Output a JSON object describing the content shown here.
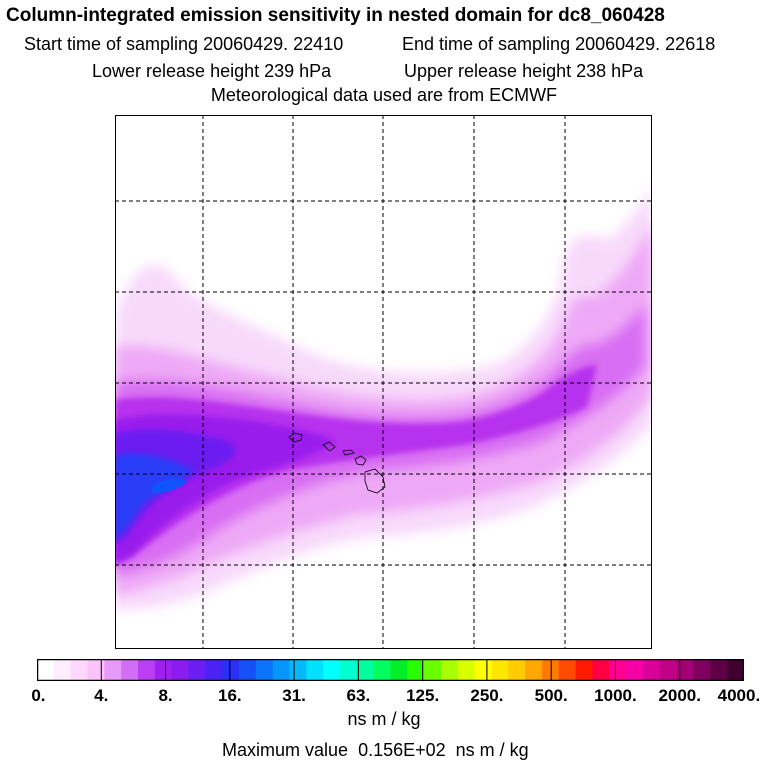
{
  "header": {
    "title": "Column-integrated emission sensitivity in nested domain for dc8_060428",
    "start_time": "Start time of sampling 20060429. 22410",
    "end_time": "End time of sampling 20060429. 22618",
    "lower_release": "Lower release height  239 hPa",
    "upper_release": "Upper release height  238 hPa",
    "met_data": "Meteorological data used are from ECMWF"
  },
  "colorbar": {
    "ticks": [
      "0.",
      "4.",
      "8.",
      "16.",
      "31.",
      "63.",
      "125.",
      "250.",
      "500.",
      "1000.",
      "2000.",
      "4000."
    ],
    "unit": "ns m / kg",
    "colors": [
      "#ffffff",
      "#ffeefe",
      "#ffd9fd",
      "#fcc3fb",
      "#e89af8",
      "#d26ef5",
      "#bb3ff2",
      "#a020ef",
      "#8a1cf0",
      "#6a1ef2",
      "#4a22f4",
      "#2a30f6",
      "#1850f8",
      "#0a74fa",
      "#0796fc",
      "#06b8fd",
      "#00e0ff",
      "#00ffff",
      "#00ffd0",
      "#00ff9c",
      "#00ff5e",
      "#00ee2a",
      "#28ff00",
      "#6aff00",
      "#a8ff00",
      "#d8ff00",
      "#ffff00",
      "#ffe600",
      "#ffcc00",
      "#ffa600",
      "#ff7a00",
      "#ff4a00",
      "#ff1a00",
      "#ff0045",
      "#ff0090",
      "#f700a6",
      "#d80096",
      "#c00086",
      "#a20074",
      "#7f005f",
      "#5f0047",
      "#3f0030"
    ]
  },
  "footer": {
    "max_label": "Maximum value",
    "max_value": "0.156E+02",
    "max_unit": "ns m / kg"
  },
  "map": {
    "gridline_color": "#000000",
    "plume_colors": {
      "faint": "#f8d9fb",
      "light": "#eea9f6",
      "medium": "#d86ef3",
      "strong": "#b733ee",
      "violet": "#9a1eed",
      "blue_violet": "#6c1ff0",
      "blue": "#2a3cf7",
      "core": "#0f55fb"
    }
  }
}
